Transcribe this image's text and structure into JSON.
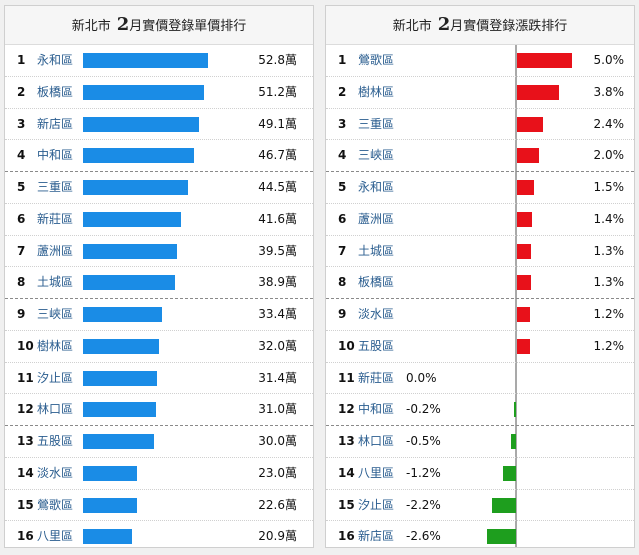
{
  "chart_data": [
    {
      "type": "bar",
      "orientation": "horizontal",
      "title": {
        "prefix": "新北市",
        "big": "2",
        "suffix": "月實價登錄單價排行"
      },
      "unit": "萬",
      "categories": [
        "永和區",
        "板橋區",
        "新店區",
        "中和區",
        "三重區",
        "新莊區",
        "蘆洲區",
        "土城區",
        "三峽區",
        "樹林區",
        "汐止區",
        "林口區",
        "五股區",
        "淡水區",
        "鶯歌區",
        "八里區"
      ],
      "values": [
        52.8,
        51.2,
        49.1,
        46.7,
        44.5,
        41.6,
        39.5,
        38.9,
        33.4,
        32.0,
        31.4,
        31.0,
        30.0,
        23.0,
        22.6,
        20.9
      ],
      "value_labels": [
        "52.8萬",
        "51.2萬",
        "49.1萬",
        "46.7萬",
        "44.5萬",
        "41.6萬",
        "39.5萬",
        "38.9萬",
        "33.4萬",
        "32.0萬",
        "31.4萬",
        "31.0萬",
        "30.0萬",
        "23.0萬",
        "22.6萬",
        "20.9萬"
      ],
      "colors": {
        "bar": "#1a8ce6"
      }
    },
    {
      "type": "bar",
      "orientation": "horizontal",
      "title": {
        "prefix": "新北市",
        "big": "2",
        "suffix": "月實價登錄漲跌排行"
      },
      "unit": "%",
      "categories": [
        "鶯歌區",
        "樹林區",
        "三重區",
        "三峽區",
        "永和區",
        "蘆洲區",
        "土城區",
        "板橋區",
        "淡水區",
        "五股區",
        "新莊區",
        "中和區",
        "林口區",
        "八里區",
        "汐止區",
        "新店區"
      ],
      "values": [
        5.0,
        3.8,
        2.4,
        2.0,
        1.5,
        1.4,
        1.3,
        1.3,
        1.2,
        1.2,
        0.0,
        -0.2,
        -0.5,
        -1.2,
        -2.2,
        -2.6
      ],
      "value_labels": [
        "5.0%",
        "3.8%",
        "2.4%",
        "2.0%",
        "1.5%",
        "1.4%",
        "1.3%",
        "1.3%",
        "1.2%",
        "1.2%",
        "0.0%",
        "-0.2%",
        "-0.5%",
        "-1.2%",
        "-2.2%",
        "-2.6%"
      ],
      "colors": {
        "positive": "#e8111a",
        "negative": "#1e9e1e"
      }
    }
  ]
}
